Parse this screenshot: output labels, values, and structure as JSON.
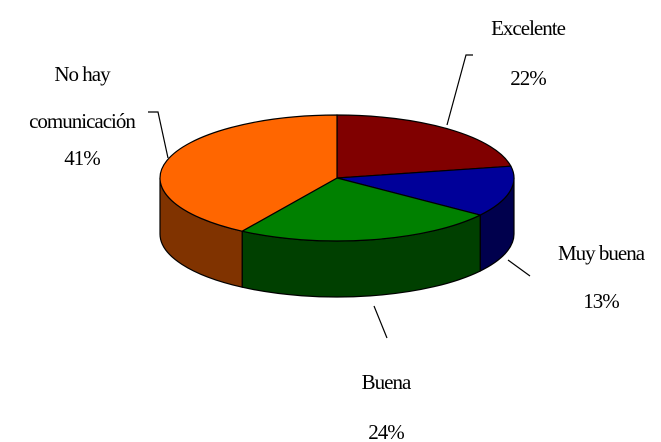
{
  "chart_data": {
    "type": "pie3d",
    "categories": [
      "Excelente",
      "Muy buena",
      "Buena",
      "No hay comunicación"
    ],
    "values": [
      22,
      13,
      24,
      41
    ],
    "value_labels": [
      "22%",
      "13%",
      "24%",
      "41%"
    ],
    "colors": [
      "#800000",
      "#000099",
      "#008000",
      "#ff6600"
    ]
  }
}
